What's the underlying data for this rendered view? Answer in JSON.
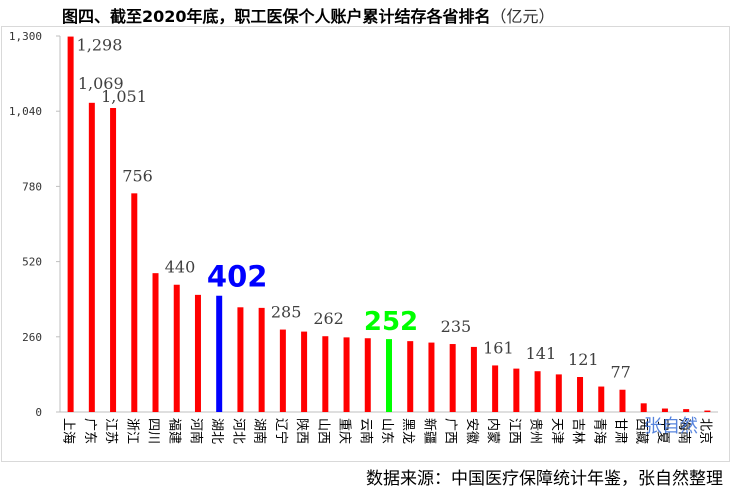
{
  "title": "图四、截至2020年底，职工医保个人账户累计结存各省排名",
  "title_unit": "（亿元）",
  "source": "数据来源：中国医疗保障统计年鉴，张自然整理",
  "watermark": "张自然",
  "colors": {
    "default_bar": "#ff0000",
    "highlight_blue": "#0000ff",
    "highlight_green": "#00ff00"
  },
  "chart_data": {
    "type": "bar",
    "categories": [
      "上海",
      "广东",
      "江苏",
      "浙江",
      "四川",
      "福建",
      "河南",
      "湖北",
      "河北",
      "湖南",
      "辽宁",
      "陕西",
      "山西",
      "重庆",
      "云南",
      "山东",
      "黑龙",
      "新疆",
      "广西",
      "安徽",
      "内蒙",
      "江西",
      "贵州",
      "天津",
      "吉林",
      "青海",
      "甘肃",
      "西藏",
      "宁夏",
      "海南",
      "北京"
    ],
    "values": [
      1298,
      1069,
      1051,
      756,
      480,
      440,
      405,
      402,
      362,
      360,
      285,
      278,
      262,
      258,
      255,
      252,
      245,
      240,
      235,
      225,
      161,
      150,
      141,
      130,
      121,
      88,
      77,
      30,
      12,
      10,
      5
    ],
    "bar_colors": [
      "#ff0000",
      "#ff0000",
      "#ff0000",
      "#ff0000",
      "#ff0000",
      "#ff0000",
      "#ff0000",
      "#0000ff",
      "#ff0000",
      "#ff0000",
      "#ff0000",
      "#ff0000",
      "#ff0000",
      "#ff0000",
      "#ff0000",
      "#00ff00",
      "#ff0000",
      "#ff0000",
      "#ff0000",
      "#ff0000",
      "#ff0000",
      "#ff0000",
      "#ff0000",
      "#ff0000",
      "#ff0000",
      "#ff0000",
      "#ff0000",
      "#ff0000",
      "#ff0000",
      "#ff0000",
      "#ff0000"
    ],
    "data_labels": [
      {
        "index": 0,
        "text": "1,298",
        "style": "normal"
      },
      {
        "index": 1,
        "text": "1,069",
        "style": "normal"
      },
      {
        "index": 2,
        "text": "1,051",
        "style": "normal"
      },
      {
        "index": 3,
        "text": "756",
        "style": "normal"
      },
      {
        "index": 5,
        "text": "440",
        "style": "normal"
      },
      {
        "index": 7,
        "text": "402",
        "style": "blue-bold"
      },
      {
        "index": 10,
        "text": "285",
        "style": "normal"
      },
      {
        "index": 12,
        "text": "262",
        "style": "normal"
      },
      {
        "index": 15,
        "text": "252",
        "style": "green-bold"
      },
      {
        "index": 18,
        "text": "235",
        "style": "normal"
      },
      {
        "index": 20,
        "text": "161",
        "style": "normal"
      },
      {
        "index": 22,
        "text": "141",
        "style": "normal"
      },
      {
        "index": 24,
        "text": "121",
        "style": "normal"
      },
      {
        "index": 26,
        "text": "77",
        "style": "normal"
      }
    ],
    "yticks": [
      0,
      260,
      520,
      780,
      1040,
      1300
    ],
    "ytick_labels": [
      "0",
      "260",
      "520",
      "780",
      "1,040",
      "1,300"
    ],
    "ylim": [
      0,
      1300
    ],
    "grid": false,
    "legend": "none"
  }
}
